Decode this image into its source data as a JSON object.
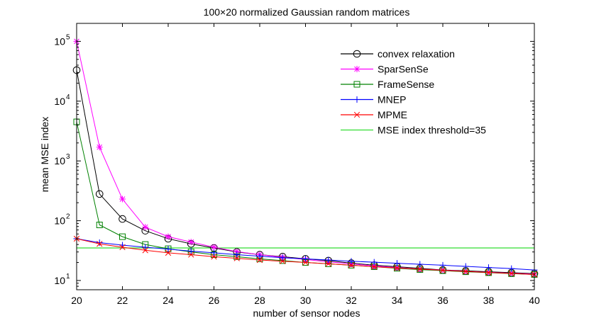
{
  "chart_data": {
    "type": "line",
    "title": "100×20 normalized Gaussian random matrices",
    "xlabel": "number of sensor nodes",
    "ylabel": "mean MSE index",
    "xlim": [
      20,
      40
    ],
    "ylim": [
      7,
      200000
    ],
    "yscale": "log",
    "x_ticks": [
      20,
      22,
      24,
      26,
      28,
      30,
      32,
      34,
      36,
      38,
      40
    ],
    "y_ticks": [
      {
        "value": 10,
        "base": "10",
        "exp": "1"
      },
      {
        "value": 100,
        "base": "10",
        "exp": "2"
      },
      {
        "value": 1000,
        "base": "10",
        "exp": "3"
      },
      {
        "value": 10000,
        "base": "10",
        "exp": "4"
      },
      {
        "value": 100000,
        "base": "10",
        "exp": "5"
      }
    ],
    "legend_position": "top-right",
    "x": [
      20,
      21,
      22,
      23,
      24,
      25,
      26,
      27,
      28,
      29,
      30,
      31,
      32,
      33,
      34,
      35,
      36,
      37,
      38,
      39,
      40
    ],
    "series": [
      {
        "name": "convex relaxation",
        "color": "#000000",
        "marker": "circle",
        "values": [
          33000,
          280,
          107,
          68,
          50,
          41,
          35,
          30,
          27,
          25,
          23,
          21.5,
          19.5,
          18,
          17,
          16,
          15,
          14.5,
          14,
          13.5,
          13
        ]
      },
      {
        "name": "SparSenSe",
        "color": "#ff00ff",
        "marker": "star",
        "values": [
          100000,
          1700,
          230,
          78,
          54,
          44,
          36,
          30.5,
          27,
          24.5,
          22.5,
          20.5,
          19,
          17.5,
          16.5,
          15.5,
          15,
          14.2,
          13.7,
          13.2,
          12.8
        ]
      },
      {
        "name": "FrameSense",
        "color": "#008000",
        "marker": "square",
        "values": [
          4500,
          85,
          54,
          40,
          34,
          30,
          27,
          25,
          23,
          21.5,
          20,
          19,
          18,
          17,
          16,
          15.2,
          14.6,
          14,
          13.5,
          13,
          12.6
        ]
      },
      {
        "name": "MNEP",
        "color": "#0000ff",
        "marker": "plus",
        "values": [
          50,
          43,
          39,
          36,
          33.5,
          31,
          29,
          27,
          25.5,
          24,
          23,
          22,
          21,
          20.2,
          19.4,
          18.7,
          18,
          17.2,
          16.5,
          15.8,
          15
        ]
      },
      {
        "name": "MPME",
        "color": "#ff0000",
        "marker": "x",
        "values": [
          50,
          41,
          36,
          32,
          29,
          27,
          25,
          23.5,
          22,
          21,
          20,
          19,
          18,
          17,
          16.2,
          15.5,
          14.8,
          14.2,
          13.6,
          13.1,
          12.6
        ]
      }
    ],
    "threshold": {
      "name": "MSE index threshold=35",
      "value": 35,
      "color": "#33dd33"
    }
  }
}
